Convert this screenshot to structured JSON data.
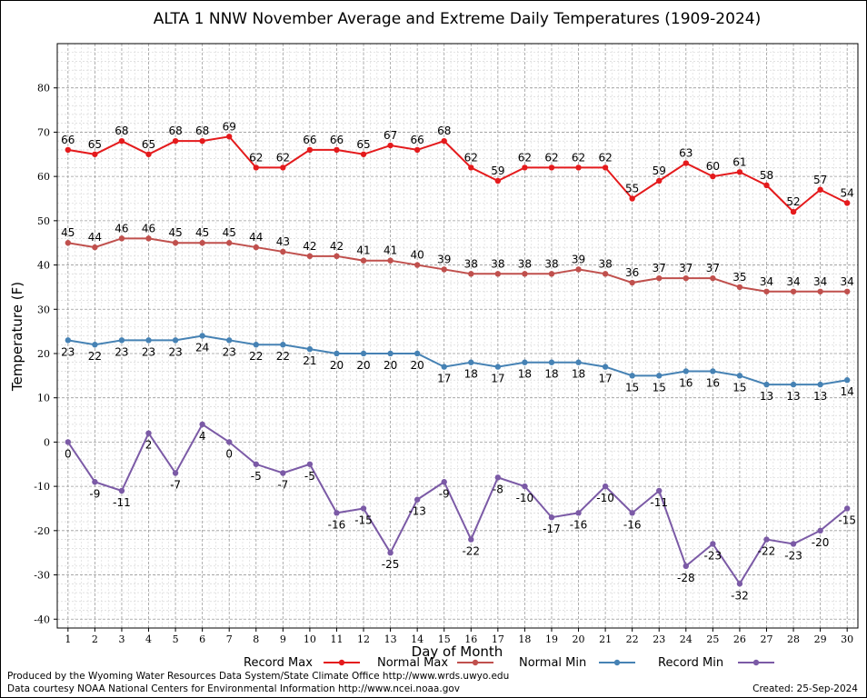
{
  "chart_data": {
    "type": "line",
    "title": "ALTA 1 NNW November Average and Extreme Daily Temperatures (1909-2024)",
    "xlabel": "Day of Month",
    "ylabel": "Temperature (F)",
    "x": [
      1,
      2,
      3,
      4,
      5,
      6,
      7,
      8,
      9,
      10,
      11,
      12,
      13,
      14,
      15,
      16,
      17,
      18,
      19,
      20,
      21,
      22,
      23,
      24,
      25,
      26,
      27,
      28,
      29,
      30
    ],
    "xlim": [
      0.6,
      30.4
    ],
    "ylim": [
      -42,
      90
    ],
    "yticks": [
      -40,
      -30,
      -20,
      -10,
      0,
      10,
      20,
      30,
      40,
      50,
      60,
      70,
      80
    ],
    "grid": true,
    "legend_position": "bottom",
    "series": [
      {
        "name": "Record Max",
        "color": "#e41a1c",
        "label_position": "above",
        "values": [
          66,
          65,
          68,
          65,
          68,
          68,
          69,
          62,
          62,
          66,
          66,
          65,
          67,
          66,
          68,
          62,
          59,
          62,
          62,
          62,
          62,
          55,
          59,
          63,
          60,
          61,
          58,
          52,
          57,
          54
        ]
      },
      {
        "name": "Normal Max",
        "color": "#c0504d",
        "label_position": "above",
        "values": [
          45,
          44,
          46,
          46,
          45,
          45,
          45,
          44,
          43,
          42,
          42,
          41,
          41,
          40,
          39,
          38,
          38,
          38,
          38,
          39,
          38,
          36,
          37,
          37,
          37,
          35,
          34,
          34,
          34,
          34
        ]
      },
      {
        "name": "Normal Min",
        "color": "#4682b4",
        "label_position": "below",
        "values": [
          23,
          22,
          23,
          23,
          23,
          24,
          23,
          22,
          22,
          21,
          20,
          20,
          20,
          20,
          17,
          18,
          17,
          18,
          18,
          18,
          17,
          15,
          15,
          16,
          16,
          15,
          13,
          13,
          13,
          14
        ]
      },
      {
        "name": "Record Min",
        "color": "#7b5aa6",
        "label_position": "below",
        "values": [
          0,
          -9,
          -11,
          2,
          -7,
          4,
          0,
          -5,
          -7,
          -5,
          -16,
          -15,
          -25,
          -13,
          -9,
          -22,
          -8,
          -10,
          -17,
          -16,
          -10,
          -16,
          -11,
          -28,
          -23,
          -32,
          -22,
          -23,
          -20,
          -15
        ]
      }
    ]
  },
  "footer": {
    "produced_by": "Produced by the Wyoming Water Resources Data System/State Climate Office http://www.wrds.uwyo.edu",
    "data_courtesy": "Data courtesy NOAA National Centers for Environmental Information http://www.ncei.noaa.gov",
    "created": "Created:  25-Sep-2024"
  }
}
